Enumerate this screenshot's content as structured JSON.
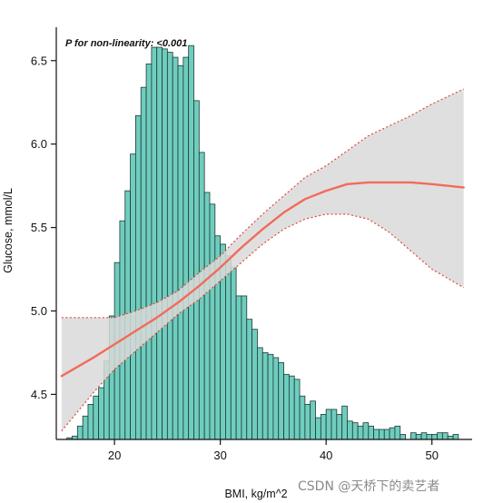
{
  "chart_data": {
    "type": "histogram_with_curve",
    "annotation": "P for non-linearity: <0.001",
    "xlabel": "BMI, kg/m^2",
    "ylabel": "Glucose, mmol/L",
    "xlim": [
      14.5,
      53.8
    ],
    "ylim": [
      4.23,
      6.7
    ],
    "x_ticks": [
      20,
      30,
      40,
      50
    ],
    "y_ticks": [
      4.5,
      5.0,
      5.5,
      6.0,
      6.5
    ],
    "x_tick_labels": [
      "20",
      "30",
      "40",
      "50"
    ],
    "y_tick_labels": [
      "4.5",
      "5.0",
      "5.5",
      "6.0",
      "6.5"
    ],
    "histogram": {
      "bin_start": 15.5,
      "bin_width": 0.5,
      "bars_top_glucose": [
        4.24,
        4.25,
        4.31,
        4.37,
        4.44,
        4.49,
        4.54,
        4.7,
        4.97,
        5.29,
        5.54,
        5.72,
        5.94,
        6.17,
        6.34,
        6.48,
        6.58,
        6.58,
        6.57,
        6.55,
        6.52,
        6.47,
        6.52,
        6.59,
        6.26,
        5.95,
        5.71,
        5.64,
        5.45,
        5.4,
        5.33,
        5.26,
        5.09,
        5.09,
        4.95,
        4.89,
        4.78,
        4.75,
        4.74,
        4.72,
        4.69,
        4.62,
        4.61,
        4.59,
        4.49,
        4.44,
        4.46,
        4.36,
        4.38,
        4.41,
        4.41,
        4.38,
        4.43,
        4.34,
        4.33,
        4.31,
        4.33,
        4.31,
        4.29,
        4.29,
        4.29,
        4.3,
        4.31,
        4.26,
        4.23,
        4.27,
        4.26,
        4.27,
        4.26,
        4.26,
        4.27,
        4.27,
        4.25,
        4.26
      ],
      "fill": "#6fcdbe",
      "stroke": "#1e3a36"
    },
    "series": [
      {
        "x": [
          15,
          18,
          20,
          22,
          24,
          26,
          28,
          30,
          32,
          34,
          36,
          38,
          40,
          42,
          44,
          46,
          48,
          50,
          53
        ],
        "y": [
          4.61,
          4.72,
          4.8,
          4.88,
          4.96,
          5.05,
          5.15,
          5.26,
          5.38,
          5.49,
          5.59,
          5.67,
          5.72,
          5.76,
          5.77,
          5.77,
          5.77,
          5.76,
          5.74
        ],
        "lower": [
          4.28,
          4.51,
          4.65,
          4.76,
          4.87,
          4.98,
          5.07,
          5.18,
          5.29,
          5.4,
          5.49,
          5.55,
          5.58,
          5.58,
          5.55,
          5.47,
          5.36,
          5.25,
          5.14
        ],
        "upper": [
          4.96,
          4.96,
          4.96,
          5.0,
          5.05,
          5.12,
          5.23,
          5.33,
          5.46,
          5.58,
          5.69,
          5.8,
          5.87,
          5.96,
          6.05,
          6.11,
          6.17,
          6.24,
          6.33
        ]
      }
    ],
    "colors": {
      "curve": "#f26b5b",
      "ci_fill": "#d9d9d9",
      "ci_line": "#e0483a"
    },
    "grid": false
  },
  "watermark": "CSDN @天桥下的卖艺者"
}
